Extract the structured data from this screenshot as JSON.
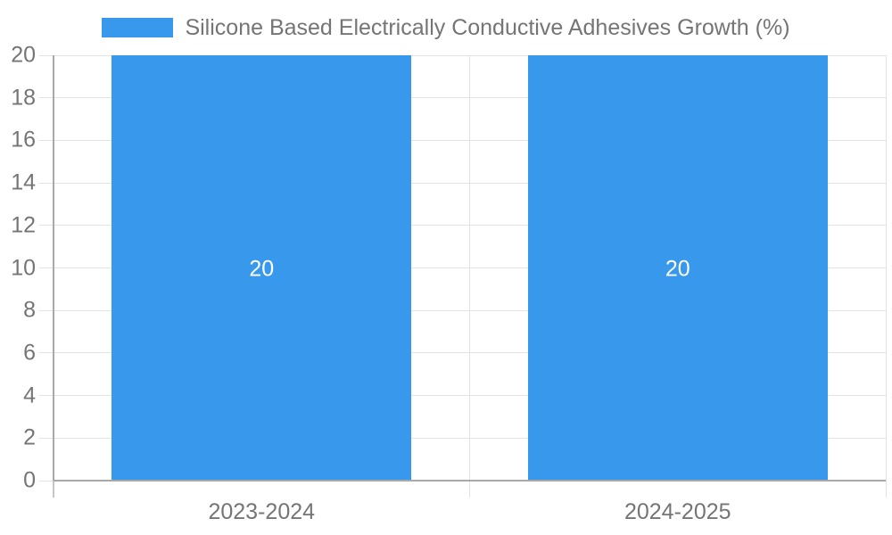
{
  "chart_data": {
    "type": "bar",
    "title": "",
    "legend": {
      "position": "top",
      "label": "Silicone Based Electrically Conductive Adhesives Growth (%)"
    },
    "categories": [
      "2023-2024",
      "2024-2025"
    ],
    "series": [
      {
        "name": "Silicone Based Electrically Conductive Adhesives Growth (%)",
        "values": [
          20,
          20
        ]
      }
    ],
    "bar_value_labels": [
      "20",
      "20"
    ],
    "y_axis": {
      "min": 0,
      "max": 20,
      "tick_step": 2,
      "tick_labels": [
        "0",
        "2",
        "4",
        "6",
        "8",
        "10",
        "12",
        "14",
        "16",
        "18",
        "20"
      ]
    },
    "grid": true,
    "layout_hints": {
      "legend_position": "top-center",
      "value_labels": "centered-inside-bars"
    },
    "colors": {
      "bar": "#3899ec",
      "legend_swatch": "#3899ec",
      "text": "#757575",
      "bar_label_text": "#ffffff",
      "grid_line": "#e3e3e3",
      "axis_line": "#a8a8a8",
      "below_axis_tick": "#c6c6c6",
      "background": "#ffffff"
    }
  }
}
